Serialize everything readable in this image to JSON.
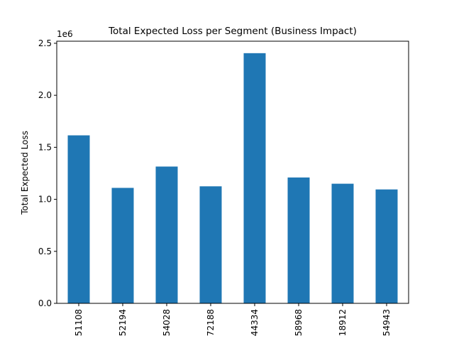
{
  "chart_data": {
    "type": "bar",
    "title": "Total Expected Loss per Segment (Business Impact)",
    "xlabel": "",
    "ylabel": "Total Expected Loss",
    "y_offset_label": "1e6",
    "categories": [
      "51108",
      "52194",
      "54028",
      "72188",
      "44334",
      "58968",
      "18912",
      "54943"
    ],
    "values": [
      1615000,
      1110000,
      1315000,
      1125000,
      2405000,
      1210000,
      1150000,
      1095000
    ],
    "ylim": [
      0,
      2520000
    ],
    "yticks": [
      0,
      500000,
      1000000,
      1500000,
      2000000,
      2500000
    ],
    "ytick_labels": [
      "0.0",
      "0.5",
      "1.0",
      "1.5",
      "2.0",
      "2.5"
    ],
    "grid": false,
    "bar_color": "#1f77b4"
  }
}
